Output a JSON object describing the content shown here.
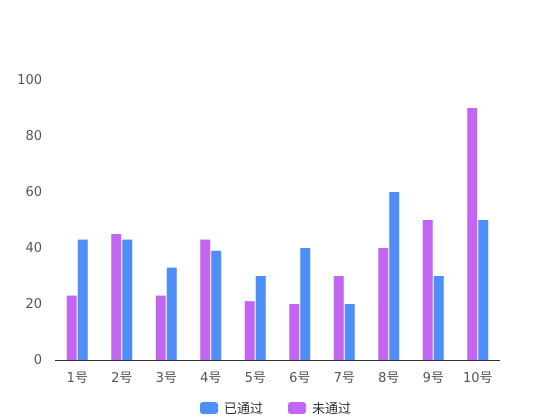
{
  "chart_data": {
    "type": "bar",
    "categories": [
      "1号",
      "2号",
      "3号",
      "4号",
      "5号",
      "6号",
      "7号",
      "8号",
      "9号",
      "10号"
    ],
    "series": [
      {
        "name": "未通过",
        "color": "#c266f2",
        "values": [
          23,
          45,
          23,
          43,
          21,
          20,
          30,
          40,
          50,
          90
        ]
      },
      {
        "name": "已通过",
        "color": "#4f8ef7",
        "values": [
          43,
          43,
          33,
          39,
          30,
          40,
          20,
          60,
          30,
          50
        ]
      }
    ],
    "ylim": [
      0,
      100
    ],
    "yticks": [
      0,
      20,
      40,
      60,
      80,
      100
    ],
    "grid": false,
    "legend_position": "bottom-center",
    "legend_order": [
      "已通过",
      "未通过"
    ]
  }
}
